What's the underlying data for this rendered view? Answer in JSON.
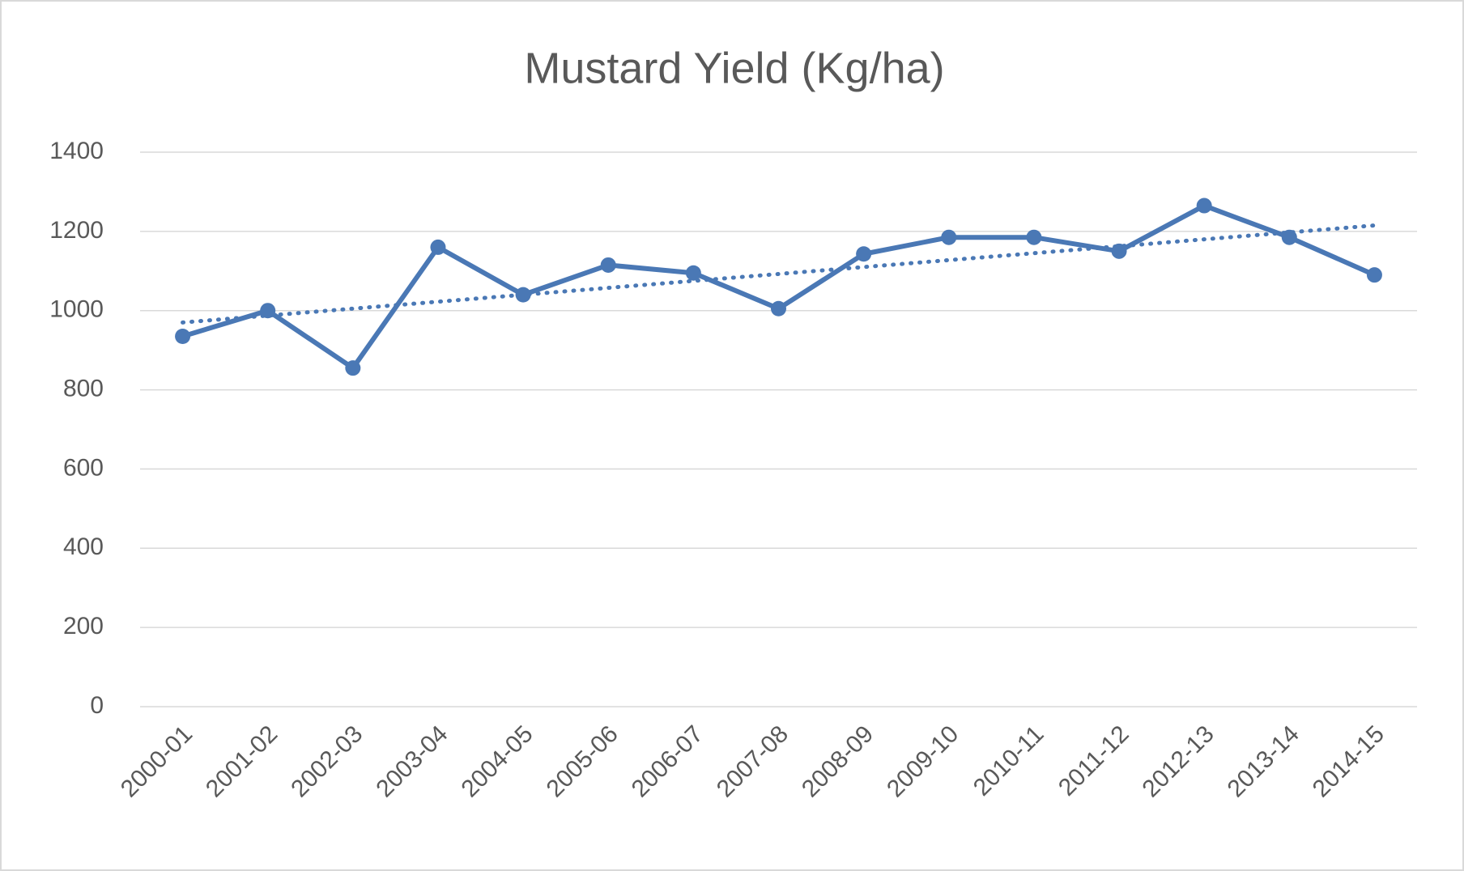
{
  "chart_data": {
    "type": "line",
    "title": "Mustard Yield (Kg/ha)",
    "categories": [
      "2000-01",
      "2001-02",
      "2002-03",
      "2003-04",
      "2004-05",
      "2005-06",
      "2006-07",
      "2007-08",
      "2008-09",
      "2009-10",
      "2010-11",
      "2011-12",
      "2012-13",
      "2013-14",
      "2014-15"
    ],
    "values": [
      935,
      1000,
      855,
      1160,
      1040,
      1115,
      1095,
      1005,
      1143,
      1185,
      1185,
      1150,
      1265,
      1185,
      1090
    ],
    "color": "#4a78b5",
    "trendline": [
      970,
      1215
    ],
    "ylim": [
      0,
      1400
    ],
    "yticks": [
      0,
      200,
      400,
      600,
      800,
      1000,
      1200,
      1400
    ],
    "grid": true
  }
}
